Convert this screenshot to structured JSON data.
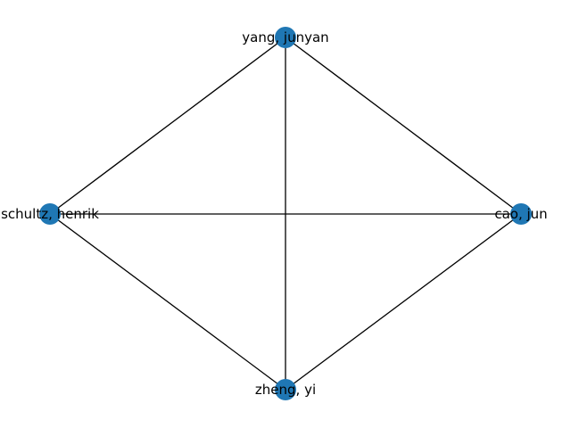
{
  "graph": {
    "node_color": "#1f77b4",
    "edge_color": "#000000",
    "nodes": [
      {
        "id": "yang",
        "label": "yang, junyan"
      },
      {
        "id": "schultz",
        "label": "schultz, henrik"
      },
      {
        "id": "cao",
        "label": "cao, jun"
      },
      {
        "id": "zheng",
        "label": "zheng, yi"
      }
    ],
    "edges": [
      [
        "yang",
        "schultz"
      ],
      [
        "yang",
        "cao"
      ],
      [
        "yang",
        "zheng"
      ],
      [
        "schultz",
        "cao"
      ],
      [
        "schultz",
        "zheng"
      ],
      [
        "cao",
        "zheng"
      ]
    ]
  }
}
